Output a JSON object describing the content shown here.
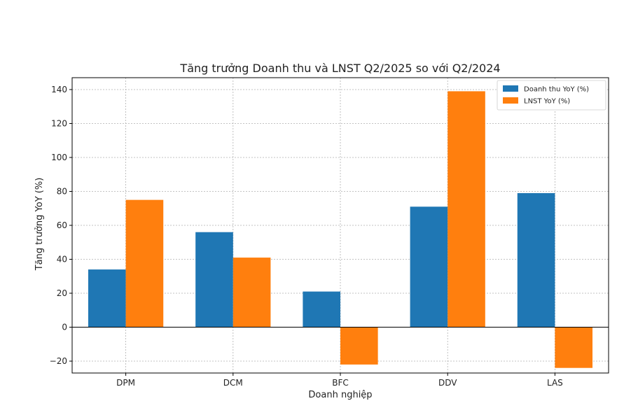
{
  "chart_data": {
    "type": "bar",
    "title": "Tăng trưởng Doanh thu và LNST Q2/2025 so với Q2/2024",
    "xlabel": "Doanh nghiệp",
    "ylabel": "Tăng trưởng YoY (%)",
    "categories": [
      "DPM",
      "DCM",
      "BFC",
      "DDV",
      "LAS"
    ],
    "series": [
      {
        "name": "Doanh thu YoY (%)",
        "values": [
          34,
          56,
          21,
          71,
          79
        ],
        "color": "#1f77b4"
      },
      {
        "name": "LNST YoY (%)",
        "values": [
          75,
          41,
          -22,
          139,
          -24
        ],
        "color": "#ff7f0e"
      }
    ],
    "ylim": [
      -27,
      147
    ],
    "yticks": [
      -20,
      0,
      20,
      40,
      60,
      80,
      100,
      120,
      140
    ],
    "ytick_labels": [
      "−20",
      "0",
      "20",
      "40",
      "60",
      "80",
      "100",
      "120",
      "140"
    ],
    "grid": true,
    "legend_position": "top-right"
  }
}
